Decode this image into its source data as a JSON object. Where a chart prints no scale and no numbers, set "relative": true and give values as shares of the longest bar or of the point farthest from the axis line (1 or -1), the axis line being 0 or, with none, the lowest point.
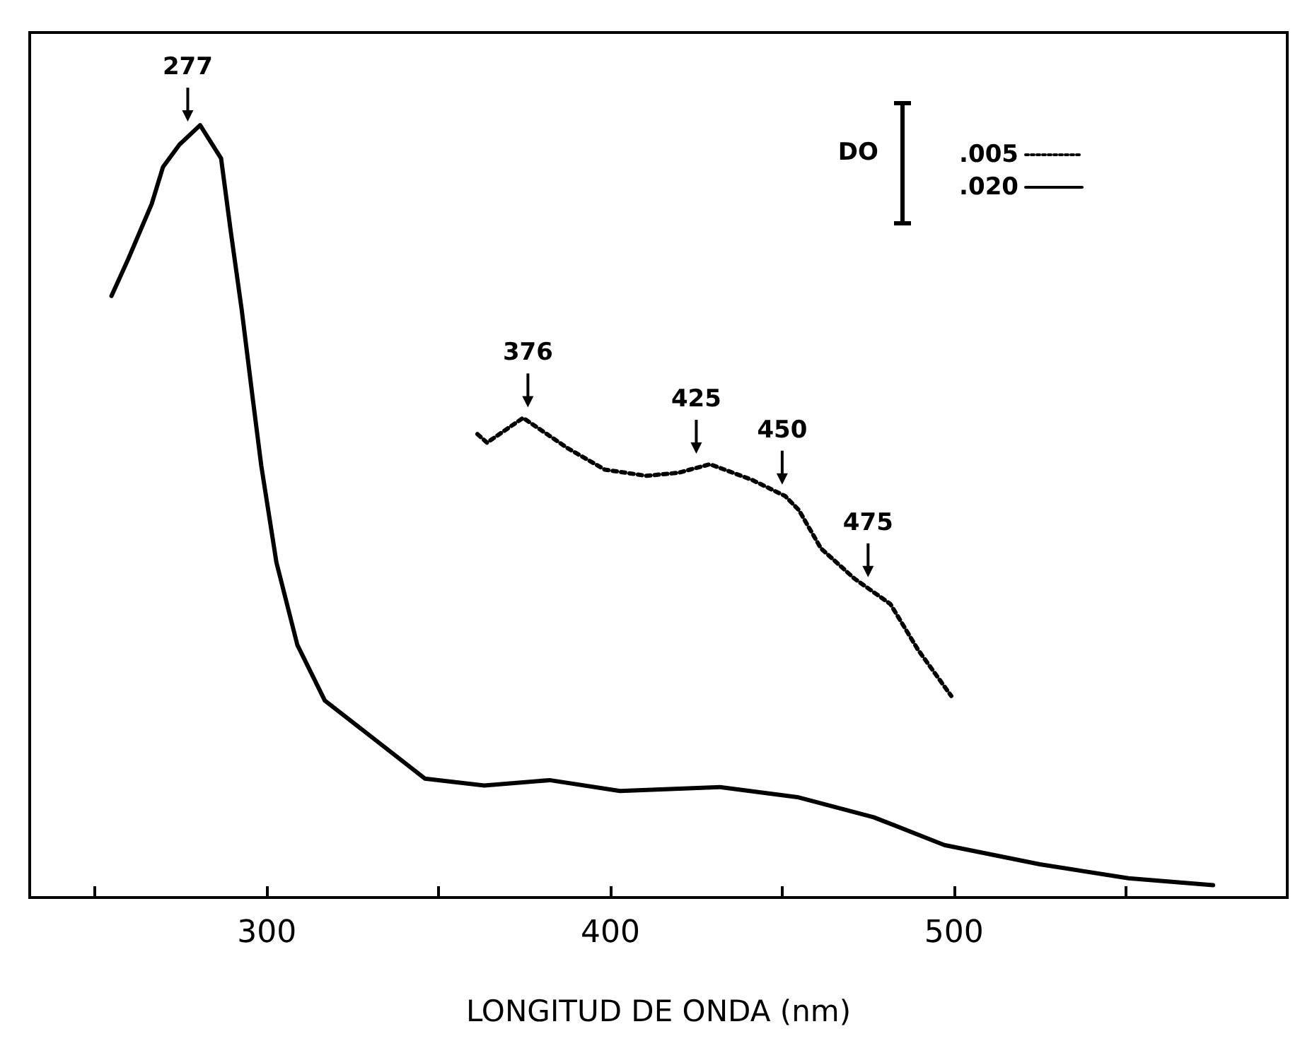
{
  "chart_data": {
    "type": "line",
    "relative": true,
    "xlabel": "LONGITUD DE ONDA (nm)",
    "legend_title": "DO",
    "legend": "top right",
    "marker": "none",
    "xlim": [
      231,
      597
    ],
    "xticks": [
      {
        "value": 250,
        "label": null
      },
      300,
      {
        "value": 350,
        "label": null
      },
      400,
      {
        "value": 450,
        "label": null
      },
      500,
      {
        "value": 550,
        "label": null
      }
    ],
    "series": [
      {
        "name": ".005",
        "color": "#000000",
        "line_style": "dotted",
        "x": [
          361.3,
          364.1,
          374.6,
          387.5,
          398.4,
          410.5,
          419.8,
          429.0,
          441.1,
          450.8,
          454.8,
          461.3,
          471.0,
          481.5,
          489.5,
          499.2
        ],
        "values": [
          0.6,
          0.589,
          0.621,
          0.582,
          0.554,
          0.546,
          0.55,
          0.561,
          0.541,
          0.52,
          0.502,
          0.452,
          0.413,
          0.38,
          0.321,
          0.261
        ]
      },
      {
        "name": ".020",
        "color": "#000000",
        "line_style": "solid",
        "x": [
          254.8,
          259.7,
          266.5,
          269.8,
          274.6,
          280.6,
          286.7,
          289.5,
          292.7,
          296.0,
          298.4,
          302.8,
          308.9,
          316.9,
          327.0,
          346.0,
          363.3,
          382.3,
          402.8,
          431.9,
          454.4,
          476.6,
          497.2,
          525.0,
          550.8,
          575.4
        ],
        "values": [
          0.779,
          0.827,
          0.898,
          0.946,
          0.975,
          1.0,
          0.957,
          0.863,
          0.761,
          0.643,
          0.559,
          0.434,
          0.327,
          0.255,
          0.22,
          0.154,
          0.145,
          0.152,
          0.138,
          0.143,
          0.13,
          0.104,
          0.068,
          0.043,
          0.025,
          0.016
        ]
      }
    ],
    "annotations": [
      {
        "text": "277",
        "x": 277,
        "y": 0.99
      },
      {
        "text": "376",
        "x": 376,
        "y": 0.62
      },
      {
        "text": "425",
        "x": 425,
        "y": 0.56
      },
      {
        "text": "450",
        "x": 450,
        "y": 0.52
      },
      {
        "text": "475",
        "x": 475,
        "y": 0.4
      }
    ]
  }
}
